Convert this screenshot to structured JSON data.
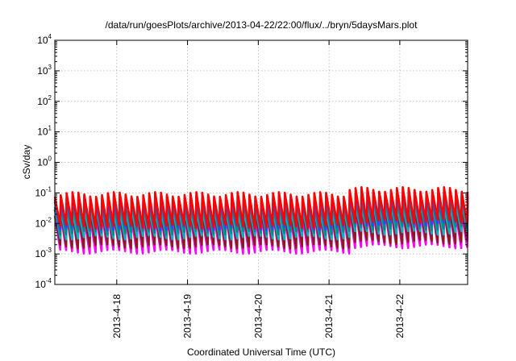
{
  "chart_data": {
    "type": "line",
    "title": "/data/run/goesPlots/archive/2013-04-22/22:00/flux/../bryn/5daysMars.plot",
    "xlabel": "Coordinated Universal Time (UTC)",
    "ylabel": "cSv/day",
    "y_scale": "log",
    "ylim_exponents": [
      -4,
      4
    ],
    "y_tick_labels": [
      {
        "base": "10",
        "exp": "4"
      },
      {
        "base": "10",
        "exp": "3"
      },
      {
        "base": "10",
        "exp": "2"
      },
      {
        "base": "10",
        "exp": "1"
      },
      {
        "base": "10",
        "exp": "0"
      },
      {
        "base": "10",
        "exp": "-1"
      },
      {
        "base": "10",
        "exp": "-2"
      },
      {
        "base": "10",
        "exp": "-3"
      },
      {
        "base": "10",
        "exp": "-4"
      }
    ],
    "x_start": "2013-04-17 03:00",
    "x_end": "2013-04-22 23:00",
    "x_ticks": [
      "2013-4-18",
      "2013-4-19",
      "2013-4-20",
      "2013-4-21",
      "2013-4-22"
    ],
    "grid": true,
    "cycle_hours": 2,
    "series": [
      {
        "color": "#ff00ff",
        "peak": 0.018,
        "trough": 0.0012,
        "peak_late": 0.025,
        "trough_late": 0.0018
      },
      {
        "color": "#8b1a1a",
        "peak": 0.025,
        "trough": 0.0018,
        "peak_late": 0.035,
        "trough_late": 0.0025
      },
      {
        "color": "#00b4c8",
        "peak": 0.03,
        "trough": 0.0035,
        "peak_late": 0.045,
        "trough_late": 0.005
      },
      {
        "color": "#008b8b",
        "peak": 0.05,
        "trough": 0.005,
        "peak_late": 0.07,
        "trough_late": 0.007
      },
      {
        "color": "#1e50ff",
        "peak": 0.07,
        "trough": 0.007,
        "peak_late": 0.1,
        "trough_late": 0.01
      },
      {
        "color": "#ff0000",
        "peak": 0.09,
        "trough": 0.008,
        "peak_late": 0.13,
        "trough_late": 0.012
      }
    ],
    "enhanced_from": "2013-04-21 06:00"
  }
}
